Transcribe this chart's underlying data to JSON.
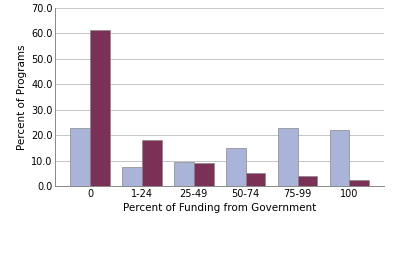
{
  "categories": [
    "0",
    "1-24",
    "25-49",
    "50-74",
    "75-99",
    "100"
  ],
  "secular": [
    23.0,
    7.5,
    9.5,
    15.0,
    23.0,
    22.0
  ],
  "faith": [
    61.5,
    18.0,
    9.0,
    5.0,
    4.0,
    2.5
  ],
  "secular_color": "#aab4d8",
  "faith_color": "#7b3055",
  "xlabel": "Percent of Funding from Government",
  "ylabel": "Percent of Programs",
  "ylim": [
    0,
    70.0
  ],
  "yticks": [
    0.0,
    10.0,
    20.0,
    30.0,
    40.0,
    50.0,
    60.0,
    70.0
  ],
  "bar_width": 0.38,
  "background_color": "#ffffff",
  "grid_color": "#bbbbbb",
  "tick_fontsize": 7,
  "label_fontsize": 7.5,
  "legend_fontsize": 7
}
